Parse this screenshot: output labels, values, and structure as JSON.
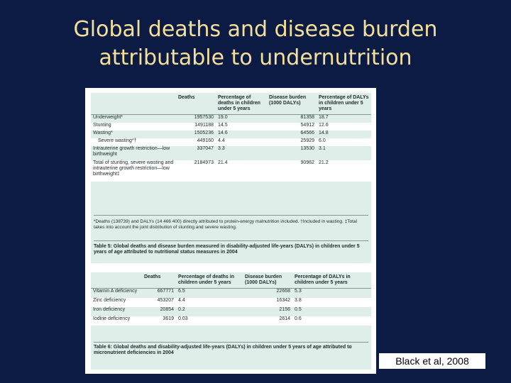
{
  "title": {
    "line1": "Global deaths and disease burden",
    "line2": "attributable to undernutrition"
  },
  "table5": {
    "headers": [
      "",
      "Deaths",
      "Percentage of deaths in children under 5 years",
      "Disease burden (1000 DALYs)",
      "Percentage of DALYs in children under 5 years"
    ],
    "rows": [
      {
        "label": "Underweight*",
        "deaths": "1957530",
        "pct_deaths": "19.0",
        "burden": "81358",
        "pct_dalys": "18.7"
      },
      {
        "label": "Stunting",
        "deaths": "1491188",
        "pct_deaths": "14.5",
        "burden": "54912",
        "pct_dalys": "12.6"
      },
      {
        "label": "Wasting*",
        "deaths": "1505236",
        "pct_deaths": "14.6",
        "burden": "64566",
        "pct_dalys": "14.8"
      },
      {
        "label": "Severe wasting*†",
        "deaths": "449160",
        "pct_deaths": "4.4",
        "burden": "25929",
        "pct_dalys": "6.0"
      },
      {
        "label": "Intrauterine growth restriction—low birthweight",
        "deaths": "337047",
        "pct_deaths": "3.3",
        "burden": "13530",
        "pct_dalys": "3.1"
      },
      {
        "label": "Total of stunting, severe wasting and intrauterine growth restriction—low birthweight‡",
        "deaths": "2184973",
        "pct_deaths": "21.4",
        "burden": "90962",
        "pct_dalys": "21.2"
      }
    ],
    "footnote": "*Deaths (138739) and DALYs (14 466 400) directly attributed to protein-energy malnutrition included. †Included in wasting. ‡Total takes into account the joint distribution of stunting and severe wasting.",
    "caption": "Table 5: Global deaths and disease burden measured in disability-adjusted life-years (DALYs) in children under 5 years of age attributed to nutritional status measures in 2004"
  },
  "table6": {
    "headers": [
      "",
      "Deaths",
      "Percentage of deaths in children under 5 years",
      "Disease burden (1000 DALYs)",
      "Percentage of DALYs in children under 5 years"
    ],
    "rows": [
      {
        "label": "Vitamin A deficiency",
        "deaths": "667771",
        "pct_deaths": "6.5",
        "burden": "22668",
        "pct_dalys": "5.3"
      },
      {
        "label": "Zinc deficiency",
        "deaths": "453207",
        "pct_deaths": "4.4",
        "burden": "16342",
        "pct_dalys": "3.8"
      },
      {
        "label": "Iron deficiency",
        "deaths": "20854",
        "pct_deaths": "0.2",
        "burden": "2156",
        "pct_dalys": "0.5"
      },
      {
        "label": "Iodine deficiency",
        "deaths": "3619",
        "pct_deaths": "0.03",
        "burden": "2614",
        "pct_dalys": "0.6"
      }
    ],
    "caption": "Table 6: Global deaths and disability-adjusted life-years (DALYs) in children under 5 years of age attributed to micronutrient deficiencies in 2004"
  },
  "citation": "Black et al, 2008"
}
